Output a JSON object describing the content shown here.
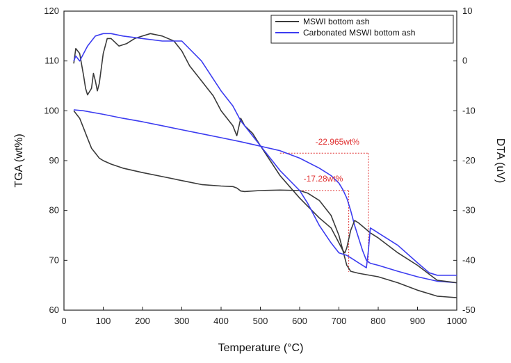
{
  "chart_data": {
    "type": "line",
    "xlabel": "Temperature (°C)",
    "ylabel_left": "TGA (wt%)",
    "ylabel_right": "DTA (uV)",
    "xlim": [
      0,
      1000
    ],
    "ylim_left": [
      60,
      120
    ],
    "ylim_right": [
      -50,
      10
    ],
    "xticks": [
      0,
      100,
      200,
      300,
      400,
      500,
      600,
      700,
      800,
      900,
      1000
    ],
    "yticks_left": [
      60,
      70,
      80,
      90,
      100,
      110,
      120
    ],
    "yticks_right": [
      -50,
      -40,
      -30,
      -20,
      -10,
      0,
      10
    ],
    "grid": false,
    "legend_position": "top-right",
    "colors": {
      "MSWI bottom ash": "#3a3a3a",
      "Carbonated MSWI bottom ash": "#3c3cf0",
      "annotation": "#e03030"
    },
    "series": [
      {
        "name": "MSWI bottom ash",
        "kind": "TGA",
        "axis": "left",
        "x": [
          25,
          40,
          50,
          60,
          70,
          80,
          90,
          100,
          120,
          150,
          200,
          250,
          300,
          350,
          400,
          430,
          440,
          450,
          460,
          500,
          550,
          600,
          620,
          650,
          680,
          700,
          720,
          730,
          750,
          800,
          850,
          900,
          950,
          1000
        ],
        "y": [
          100,
          98.5,
          96.5,
          94.5,
          92.5,
          91.5,
          90.5,
          90.0,
          89.3,
          88.5,
          87.6,
          86.8,
          86.0,
          85.2,
          84.9,
          84.8,
          84.5,
          83.9,
          83.8,
          84.0,
          84.1,
          84.0,
          83.5,
          82.0,
          79.0,
          75.0,
          69.0,
          67.8,
          67.4,
          66.7,
          65.5,
          64.0,
          62.8,
          62.5
        ]
      },
      {
        "name": "Carbonated MSWI bottom ash",
        "kind": "TGA",
        "axis": "left",
        "x": [
          25,
          50,
          100,
          150,
          200,
          250,
          300,
          350,
          400,
          450,
          500,
          550,
          600,
          650,
          680,
          700,
          710,
          720,
          730,
          740,
          760,
          770,
          780,
          800,
          850,
          900,
          950,
          1000
        ],
        "y": [
          100.2,
          100.0,
          99.3,
          98.5,
          97.8,
          97.0,
          96.2,
          95.4,
          94.6,
          93.8,
          92.9,
          92.0,
          90.5,
          88.5,
          87.0,
          85.5,
          84.2,
          82.5,
          80.0,
          77.0,
          72.0,
          70.0,
          69.4,
          69.0,
          67.8,
          66.7,
          65.8,
          65.5
        ]
      },
      {
        "name": "MSWI bottom ash",
        "kind": "DTA",
        "axis": "right",
        "x": [
          25,
          30,
          40,
          50,
          55,
          60,
          70,
          75,
          80,
          85,
          90,
          100,
          110,
          120,
          140,
          160,
          180,
          200,
          220,
          250,
          280,
          300,
          320,
          350,
          380,
          400,
          430,
          440,
          450,
          460,
          480,
          500,
          550,
          600,
          650,
          680,
          700,
          710,
          715,
          720,
          730,
          740,
          750,
          780,
          800,
          850,
          900,
          950,
          1000
        ],
        "y": [
          -0.5,
          2.5,
          1.5,
          -3.0,
          -5.5,
          -6.8,
          -5.5,
          -2.5,
          -4.0,
          -6.0,
          -4.5,
          1.5,
          4.5,
          4.5,
          3.0,
          3.5,
          4.5,
          5.0,
          5.5,
          5.0,
          4.0,
          2.0,
          -1.0,
          -4.0,
          -7.0,
          -10.0,
          -13.0,
          -15.0,
          -11.5,
          -13.0,
          -14.5,
          -17.0,
          -23.0,
          -27.5,
          -31.5,
          -33.5,
          -36.5,
          -38.0,
          -38.5,
          -37.5,
          -34.0,
          -32.0,
          -32.5,
          -34.5,
          -35.5,
          -38.5,
          -41.0,
          -44.0,
          -44.5
        ]
      },
      {
        "name": "Carbonated MSWI bottom ash",
        "kind": "DTA",
        "axis": "right",
        "x": [
          25,
          30,
          35,
          40,
          50,
          60,
          80,
          100,
          120,
          150,
          200,
          250,
          300,
          350,
          400,
          430,
          450,
          500,
          550,
          600,
          620,
          650,
          680,
          700,
          720,
          740,
          760,
          770,
          775,
          780,
          790,
          800,
          850,
          900,
          930,
          950,
          1000
        ],
        "y": [
          0,
          1.0,
          0.5,
          0.0,
          1.5,
          3.0,
          5.0,
          5.5,
          5.5,
          5.0,
          4.5,
          4.0,
          4.0,
          0.0,
          -6.0,
          -9.0,
          -12.0,
          -17.0,
          -22.0,
          -26.0,
          -28.5,
          -33.0,
          -36.5,
          -38.5,
          -39.0,
          -40.0,
          -41.0,
          -41.5,
          -38.0,
          -33.5,
          -34.0,
          -34.5,
          -37.0,
          -40.5,
          -42.5,
          -43.0,
          -43.0
        ]
      }
    ],
    "annotations": [
      {
        "text": "-22.965wt%",
        "x": 640,
        "y": 93.2
      },
      {
        "text": "-17.28wt%",
        "x": 610,
        "y": 85.8
      }
    ],
    "bracket_lines": [
      {
        "label": "-22.965wt%",
        "x_from": 550,
        "x_to": 775,
        "y_top": 91.5,
        "y_bottom": 69.4
      },
      {
        "label": "-17.28wt%",
        "x_from": 600,
        "x_to": 725,
        "y_top": 84.0,
        "y_bottom": 67.7
      }
    ]
  }
}
